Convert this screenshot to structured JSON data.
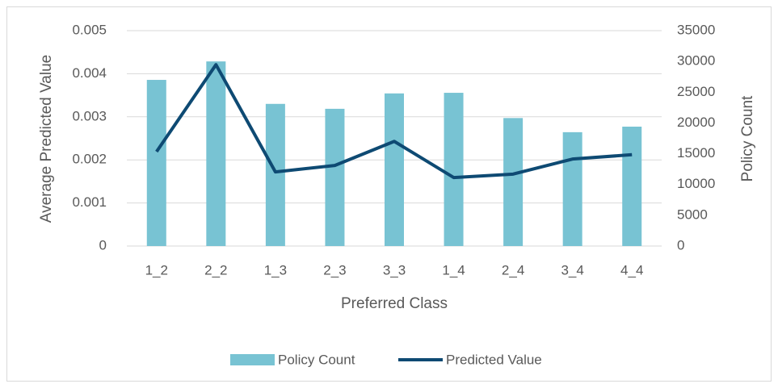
{
  "chart_data": {
    "type": "bar-line",
    "x_label": "Preferred Class",
    "y_label": "Average Predicted Value",
    "y2_label": "Policy Count",
    "categories": [
      "1_2",
      "2_2",
      "1_3",
      "2_3",
      "3_3",
      "1_4",
      "2_4",
      "3_4",
      "4_4"
    ],
    "series": [
      {
        "name": "Policy Count",
        "type": "bar",
        "axis": "y2",
        "color": "#78c3d3",
        "values": [
          27000,
          30000,
          23100,
          22300,
          24800,
          24900,
          20800,
          18500,
          19400
        ]
      },
      {
        "name": "Predicted Value",
        "type": "line",
        "axis": "y",
        "color": "#0e4a73",
        "values": [
          0.00219,
          0.00421,
          0.00172,
          0.00187,
          0.00243,
          0.00159,
          0.00167,
          0.00202,
          0.00212
        ]
      }
    ],
    "ylim": [
      0,
      0.005
    ],
    "yticks": [
      0,
      0.001,
      0.002,
      0.003,
      0.004,
      0.005
    ],
    "y2lim": [
      0,
      35000
    ],
    "y2ticks": [
      0,
      5000,
      10000,
      15000,
      20000,
      25000,
      30000,
      35000
    ],
    "grid": true,
    "legend": "bottom"
  }
}
